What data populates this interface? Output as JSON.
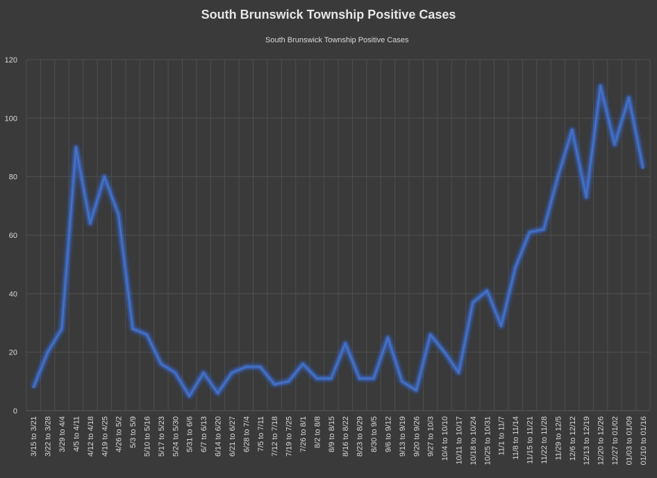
{
  "chart_data": {
    "type": "line",
    "title": "South Brunswick Township Positive Cases",
    "xlabel": "",
    "ylabel": "",
    "ylim": [
      0,
      120
    ],
    "yticks": [
      0,
      20,
      40,
      60,
      80,
      100,
      120
    ],
    "legend_position": "top-center",
    "grid": true,
    "colors": {
      "background": "#3a3a3a",
      "line": "#4472c4",
      "glow": "#3b6bd6"
    },
    "categories": [
      "3/15 to 3/21",
      "3/22 to 3/28",
      "3/29 to 4/4",
      "4/5 to 4/11",
      "4/12 to 4/18",
      "4/19 to 4/25",
      "4/26 to 5/2",
      "5/3 to 5/9",
      "5/10 to 5/16",
      "5/17 to 5/23",
      "5/24 to 5/30",
      "5/31 to 6/6",
      "6/7 to 6/13",
      "6/14 to 6/20",
      "6/21 to 6/27",
      "6/28 to 7/4",
      "7/5 to 7/11",
      "7/12 to 7/18",
      "7/19 to 7/25",
      "7/26 to 8/1",
      "8/2 to 8/8",
      "8/9 to 8/15",
      "8/16 to 8/22",
      "8/23 to 8/29",
      "8/30 to 9/5",
      "9/6 to 9/12",
      "9/13 to 9/19",
      "9/20 to 9/26",
      "9/27 to 10/3",
      "10/4 to 10/10",
      "10/11 to 10/17",
      "10/18 to 10/24",
      "10/25 to 10/31",
      "11/1 to 11/7",
      "11/8 to 11/14",
      "11/15 to 11/21",
      "11/22 to 11/28",
      "11/29 to 12/5",
      "12/6 to 12/12",
      "12/13 to 12/19",
      "12/20 to 12/26",
      "12/27 to 01/02",
      "01/03 to 01/09",
      "01/10 to 01/16"
    ],
    "series": [
      {
        "name": "South Brunswick Township Positive Cases",
        "values": [
          8,
          20,
          28,
          90,
          64,
          80,
          67,
          28,
          26,
          16,
          13,
          5,
          13,
          6,
          13,
          15,
          15,
          9,
          10,
          16,
          11,
          11,
          23,
          11,
          11,
          25,
          10,
          7,
          26,
          20,
          13,
          37,
          41,
          29,
          49,
          61,
          62,
          80,
          96,
          73,
          111,
          91,
          107,
          83
        ]
      }
    ]
  }
}
